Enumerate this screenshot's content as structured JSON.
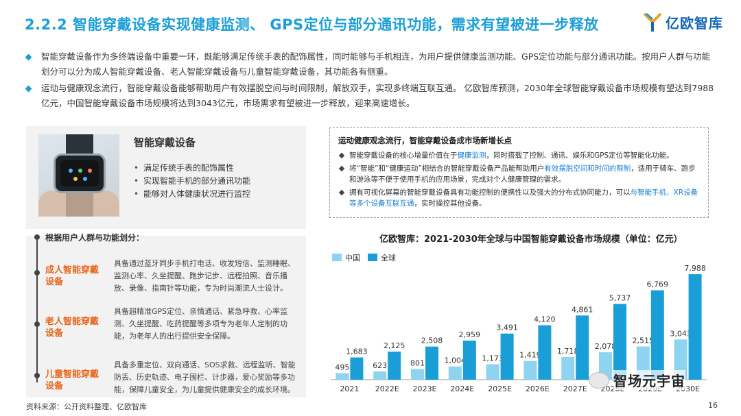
{
  "header": {
    "title": "2.2.2 智能穿戴设备实现健康监测、 GPS定位与部分通讯功能，需求有望被进一步释放",
    "logo_text": "亿欧智库"
  },
  "intro_bullets": [
    "智能穿戴设备作为多终端设备中重要一环，既能够满足传统手表的配饰属性，同时能够与手机相连，为用户提供健康监测功能、GPS定位功能与部分通讯功能。按用户人群与功能划分可以分为成人智能穿戴设备、老人智能穿戴设备与儿童智能穿戴设备，其功能各有侧重。",
    "运动与健康观念流行，智能穿戴设备能够帮助用户有效摆脱空间与时间限制，解放双手，实现多终端互联互通。 亿欧智库预测，2030年全球智能穿戴设备市场规模有望达到7988亿元，中国智能穿戴设备市场规模将达到3043亿元，市场需求有望被进一步释放，迎来高速增长。"
  ],
  "device_panel": {
    "heading": "智能穿戴设备",
    "features": [
      "满足传统手表的配饰属性",
      "实现智能手机的部分通讯功能",
      "能够对人体健康状况进行监控"
    ],
    "group_heading": "根据用户人群与功能划分：",
    "segments": [
      {
        "title": "成人智能穿戴设备",
        "desc": "具备通过蓝牙同步手机打电话、收发短信、监测睡眠、监测心率、久坐提醒、跑步记步、远程拍照、音乐播放、录像、指南针等功能，专为时尚潮流人士设计。"
      },
      {
        "title": "老人智能穿戴设备",
        "desc": "具备超精准GPS定位、亲情通话、紧急呼救、心率监测、久坐提醒、吃药提醒等多项专为老年人定制的功能，为老年人的出行提供安全保障。"
      },
      {
        "title": "儿童智能穿戴设备",
        "desc": "具备多重定位、双向通话、SOS求救、远程监听、智能防丢、历史轨迹、电子围栏、计步器，爱心奖励等多功能，保障儿童安全，为儿童提供健康安全的成长环境。"
      }
    ]
  },
  "trend_box": {
    "heading": "运动健康观念流行，智能穿戴设备成市场新增长点",
    "items": [
      {
        "a": "智能穿戴设备的核心增量价值在于",
        "b": "健康监测",
        "c": "，同时搭载了控制、通讯、娱乐和GPS定位等智能化功能。"
      },
      {
        "a": "将“智能”和“健康运动”相结合的智能穿戴设备产品能帮助用户",
        "b": "有效摆脱空间和时间的限制",
        "c": "，适用于骑车、跑步和游泳等不便于使用手机的应用场景，完成对个人健康管理的需求。"
      },
      {
        "a": "拥有可视化屏幕的智能穿戴设备具有功能控制的便携性以及强大的分布式协同能力，可以",
        "b": "与智能手机、XR设备等多个设备互联互通",
        "c": "，实时操控其他设备。"
      }
    ]
  },
  "chart_title": "亿欧智库：2021-2030年全球与中国智能穿戴设备市场规模（单位：亿元）",
  "chart_data": {
    "type": "bar",
    "categories": [
      "2021",
      "2022E",
      "2023E",
      "2024E",
      "2025E",
      "2026E",
      "2027E",
      "2028E",
      "2029E",
      "2030E"
    ],
    "series": [
      {
        "name": "中国",
        "values": [
          495,
          623,
          801,
          1004,
          1173,
          1419,
          1718,
          2078,
          2515,
          3043
        ],
        "color": "#8ed3f0"
      },
      {
        "name": "全球",
        "values": [
          1683,
          2125,
          2508,
          2959,
          3491,
          4120,
          4861,
          5737,
          6769,
          7988
        ],
        "color": "#1a9ed8"
      }
    ],
    "title": "亿欧智库：2021-2030年全球与中国智能穿戴设备市场规模（单位：亿元）",
    "ylim": [
      0,
      8200
    ],
    "grid": false,
    "legend": "top-left"
  },
  "footer": {
    "source": "资料来源：公开资料整理、亿欧智库",
    "page": "16",
    "watermark": "智场元宇宙"
  },
  "colors": {
    "accent": "#1a9ed8",
    "orange": "#e86318",
    "china": "#8ed3f0",
    "global": "#1a9ed8"
  }
}
